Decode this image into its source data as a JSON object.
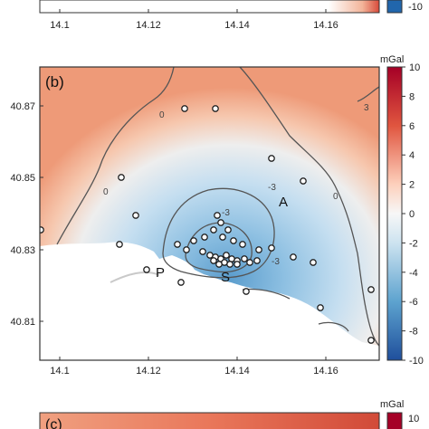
{
  "panel_label": "(b)",
  "partial_panel_label": "(c)",
  "colorbar": {
    "unit": "mGal",
    "ticks": [
      "10",
      "8",
      "6",
      "4",
      "2",
      "0",
      "-2",
      "-4",
      "-6",
      "-8",
      "-10"
    ],
    "colors": {
      "max": "#b2182b",
      "high": "#ef8a62",
      "mid_high": "#fddbc7",
      "zero": "#f7f7f7",
      "mid_low": "#d1e5f0",
      "low": "#67a9cf",
      "min": "#2166ac"
    }
  },
  "lower_colorbar": {
    "unit": "mGal",
    "top_tick": "10"
  },
  "top_colorbar_bottom_tick": "-10",
  "x_ticks": [
    "14.1",
    "14.12",
    "14.14",
    "14.16"
  ],
  "top_x_ticks": [
    "14.1",
    "14.12",
    "14.14",
    "14.16"
  ],
  "y_ticks": [
    "40.87",
    "40.85",
    "40.83",
    "40.81"
  ],
  "contour_labels": [
    "0",
    "0",
    "0",
    "-3",
    "-3",
    "-3",
    "3"
  ],
  "place_labels": {
    "a": "A",
    "p": "P",
    "s": "S"
  },
  "colors": {
    "sea": "#ffffff",
    "land_positive": "#ef9d7c",
    "land_negative": "#7fb3dc",
    "contour": "#555555",
    "station_fill": "#ffffff"
  }
}
